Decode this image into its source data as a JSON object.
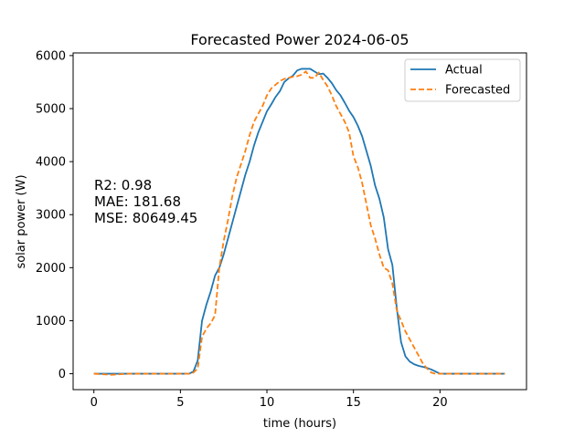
{
  "chart_data": {
    "type": "line",
    "title": "Forecasted Power 2024-06-05",
    "xlabel": "time (hours)",
    "ylabel": "solar power (W)",
    "xlim": [
      -1.2,
      25
    ],
    "ylim": [
      -300,
      6050
    ],
    "x_ticks": [
      0,
      5,
      10,
      15,
      20
    ],
    "y_ticks": [
      0,
      1000,
      2000,
      3000,
      4000,
      5000,
      6000
    ],
    "grid": false,
    "legend_position": "top-right",
    "annotations": [
      "R2: 0.98",
      "MAE: 181.68",
      "MSE: 80649.45"
    ],
    "series": [
      {
        "name": "Actual",
        "color": "#1f77b4",
        "style": "solid",
        "x": [
          0,
          0.5,
          1,
          1.5,
          2,
          2.5,
          3,
          3.5,
          4,
          4.5,
          5,
          5.5,
          5.75,
          6,
          6.25,
          6.5,
          6.75,
          7,
          7.25,
          7.5,
          7.75,
          8,
          8.25,
          8.5,
          8.75,
          9,
          9.25,
          9.5,
          9.75,
          10,
          10.25,
          10.5,
          10.75,
          11,
          11.25,
          11.5,
          11.75,
          12,
          12.25,
          12.5,
          12.75,
          13,
          13.25,
          13.5,
          13.75,
          14,
          14.25,
          14.5,
          14.75,
          15,
          15.25,
          15.5,
          15.75,
          16,
          16.25,
          16.5,
          16.75,
          17,
          17.25,
          17.5,
          17.75,
          18,
          18.25,
          18.5,
          18.75,
          19,
          19.25,
          19.5,
          19.75,
          20,
          20.5,
          21,
          21.5,
          22,
          22.5,
          23,
          23.5,
          23.75
        ],
        "y": [
          0,
          0,
          0,
          0,
          0,
          0,
          0,
          0,
          0,
          0,
          0,
          0,
          40,
          250,
          1000,
          1300,
          1550,
          1850,
          2000,
          2250,
          2550,
          2850,
          3150,
          3450,
          3750,
          4000,
          4300,
          4550,
          4750,
          4950,
          5080,
          5220,
          5330,
          5500,
          5570,
          5620,
          5720,
          5750,
          5750,
          5750,
          5700,
          5650,
          5660,
          5580,
          5480,
          5350,
          5250,
          5110,
          4960,
          4840,
          4680,
          4480,
          4200,
          3920,
          3550,
          3300,
          2950,
          2350,
          2050,
          1250,
          600,
          330,
          230,
          180,
          150,
          130,
          110,
          80,
          40,
          0,
          0,
          0,
          0,
          0,
          0,
          0,
          0,
          0
        ]
      },
      {
        "name": "Forecasted",
        "color": "#ff7f0e",
        "style": "dashed",
        "x": [
          0,
          0.5,
          1,
          1.5,
          2,
          2.5,
          3,
          3.5,
          4,
          4.5,
          5,
          5.5,
          5.75,
          6,
          6.25,
          6.5,
          6.75,
          7,
          7.25,
          7.5,
          7.75,
          8,
          8.25,
          8.5,
          8.75,
          9,
          9.25,
          9.5,
          9.75,
          10,
          10.25,
          10.5,
          10.75,
          11,
          11.25,
          11.5,
          11.75,
          12,
          12.25,
          12.5,
          12.75,
          13,
          13.25,
          13.5,
          13.75,
          14,
          14.25,
          14.5,
          14.75,
          15,
          15.25,
          15.5,
          15.75,
          16,
          16.25,
          16.5,
          16.75,
          17,
          17.25,
          17.5,
          17.75,
          18,
          18.25,
          18.5,
          18.75,
          19,
          19.25,
          19.5,
          19.75,
          20,
          20.5,
          21,
          21.5,
          22,
          22.5,
          23,
          23.5,
          23.75
        ],
        "y": [
          0,
          -10,
          -20,
          -10,
          0,
          0,
          0,
          0,
          0,
          0,
          0,
          0,
          20,
          100,
          700,
          850,
          950,
          1100,
          2000,
          2500,
          2900,
          3350,
          3700,
          3950,
          4200,
          4500,
          4750,
          4900,
          5050,
          5250,
          5380,
          5450,
          5520,
          5560,
          5580,
          5600,
          5610,
          5640,
          5700,
          5580,
          5580,
          5680,
          5540,
          5420,
          5250,
          5050,
          4900,
          4750,
          4550,
          4100,
          3900,
          3600,
          3200,
          2800,
          2550,
          2250,
          2000,
          1950,
          1700,
          1200,
          1000,
          800,
          650,
          500,
          350,
          200,
          100,
          20,
          0,
          0,
          0,
          0,
          0,
          0,
          0,
          0,
          0,
          0
        ]
      }
    ]
  }
}
